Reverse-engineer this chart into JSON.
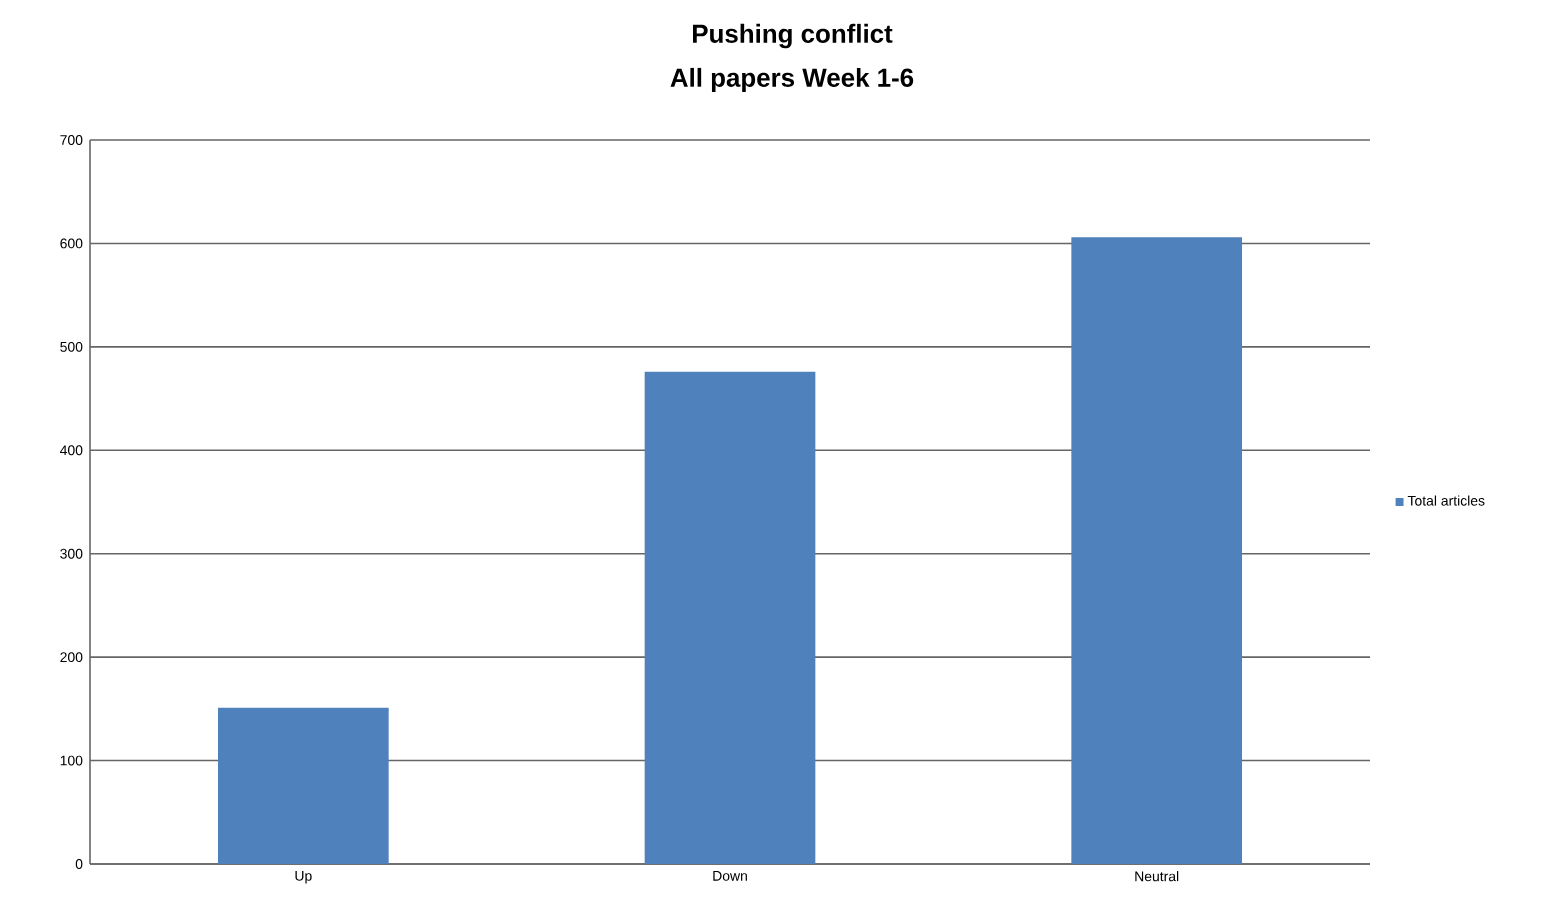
{
  "chart_data": {
    "type": "bar",
    "title": "Pushing conflict",
    "subtitle": "All papers Week 1-6",
    "categories": [
      "Up",
      "Down",
      "Neutral"
    ],
    "series": [
      {
        "name": "Total articles",
        "color": "#4f81bd",
        "values": [
          151,
          476,
          606
        ]
      }
    ],
    "ylim": [
      0,
      700
    ],
    "yticks": [
      0,
      100,
      200,
      300,
      400,
      500,
      600,
      700
    ],
    "grid": "y",
    "legend": "right"
  }
}
